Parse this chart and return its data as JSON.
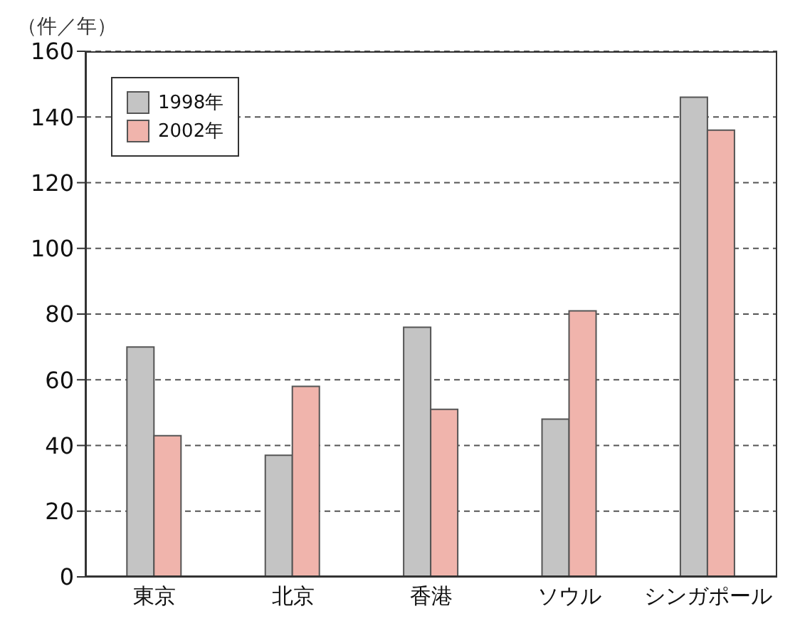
{
  "chart_data": {
    "type": "bar",
    "ylabel": "（件／年）",
    "categories": [
      "東京",
      "北京",
      "香港",
      "ソウル",
      "シンガポール"
    ],
    "series": [
      {
        "name": "1998年",
        "color": "#c4c4c4",
        "values": [
          70,
          37,
          76,
          48,
          146
        ]
      },
      {
        "name": "2002年",
        "color": "#f0b4ac",
        "values": [
          43,
          58,
          51,
          81,
          136
        ]
      }
    ],
    "ylim": [
      0,
      160
    ],
    "yticks": [
      0,
      20,
      40,
      60,
      80,
      100,
      120,
      140,
      160
    ],
    "grid": "y",
    "line_style": "dashed",
    "legend": "top left"
  }
}
